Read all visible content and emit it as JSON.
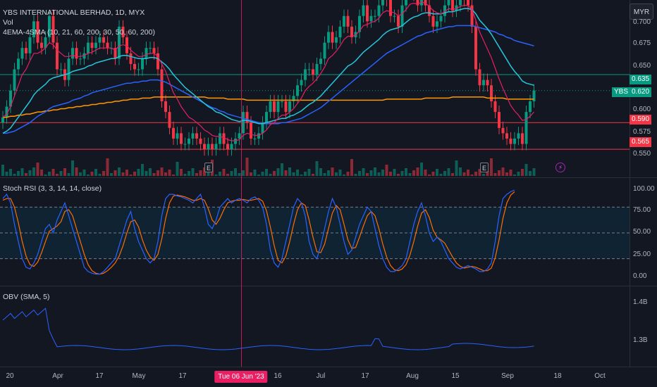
{
  "header": {
    "title": "YBS INTERNATIONAL BERHAD, 1D, MYX",
    "vol_label": "Vol",
    "ma_label": "4EMA-4SMA (10, 21, 60, 200, 30, 50, 60, 200)",
    "currency": "MYR"
  },
  "stoch_panel": {
    "label": "Stoch RSI (3, 3, 14, 14, close)"
  },
  "obv_panel": {
    "label": "OBV (SMA, 5)"
  },
  "price_axis": {
    "ticks": [
      "0.700",
      "0.675",
      "0.650",
      "0.600",
      "0.575",
      "0.550"
    ],
    "labels": [
      {
        "text": "0.635",
        "color": "#089981"
      },
      {
        "text": "YBS",
        "color": "#089981"
      },
      {
        "text": "0.620",
        "color": "#089981"
      },
      {
        "text": "0.590",
        "color": "#f23645"
      },
      {
        "text": "0.565",
        "color": "#f23645"
      }
    ]
  },
  "stoch_axis": {
    "ticks": [
      "100.00",
      "75.00",
      "50.00",
      "25.00",
      "0.00"
    ]
  },
  "obv_axis": {
    "ticks": [
      "1.4B",
      "1.3B"
    ]
  },
  "time_axis": {
    "ticks": [
      "20",
      "Apr",
      "17",
      "May",
      "17",
      "16",
      "Jul",
      "17",
      "Aug",
      "15",
      "Sep",
      "18",
      "Oct"
    ],
    "crosshair": "Tue 06 Jun '23"
  },
  "markers": {
    "earnings": "E",
    "dividend": "⚡"
  },
  "chart_data": {
    "type": "candlestick",
    "price_range": [
      0.54,
      0.705
    ],
    "levels": [
      {
        "value": 0.635,
        "color": "#089981"
      },
      {
        "value": 0.59,
        "color": "#f23645"
      },
      {
        "value": 0.565,
        "color": "#f23645"
      }
    ],
    "last_price": 0.62,
    "closes": [
      0.595,
      0.605,
      0.62,
      0.64,
      0.65,
      0.66,
      0.655,
      0.67,
      0.685,
      0.665,
      0.66,
      0.67,
      0.69,
      0.665,
      0.64,
      0.64,
      0.63,
      0.65,
      0.66,
      0.65,
      0.65,
      0.655,
      0.665,
      0.66,
      0.665,
      0.67,
      0.665,
      0.66,
      0.66,
      0.65,
      0.68,
      0.67,
      0.655,
      0.645,
      0.64,
      0.64,
      0.65,
      0.66,
      0.66,
      0.655,
      0.64,
      0.61,
      0.6,
      0.585,
      0.575,
      0.58,
      0.57,
      0.57,
      0.575,
      0.58,
      0.575,
      0.57,
      0.565,
      0.57,
      0.565,
      0.57,
      0.58,
      0.57,
      0.565,
      0.57,
      0.575,
      0.58,
      0.6,
      0.59,
      0.575,
      0.575,
      0.58,
      0.59,
      0.6,
      0.61,
      0.6,
      0.61,
      0.61,
      0.6,
      0.61,
      0.615,
      0.625,
      0.63,
      0.64,
      0.64,
      0.635,
      0.645,
      0.65,
      0.665,
      0.675,
      0.665,
      0.67,
      0.68,
      0.69,
      0.68,
      0.67,
      0.675,
      0.69,
      0.7,
      0.685,
      0.69,
      0.69,
      0.7,
      0.71,
      0.705,
      0.69,
      0.69,
      0.68,
      0.7,
      0.715,
      0.72,
      0.71,
      0.7,
      0.715,
      0.7,
      0.69,
      0.68,
      0.685,
      0.69,
      0.7,
      0.71,
      0.695,
      0.7,
      0.71,
      0.705,
      0.7,
      0.68,
      0.64,
      0.625,
      0.63,
      0.625,
      0.61,
      0.6,
      0.585,
      0.58,
      0.575,
      0.57,
      0.575,
      0.58,
      0.57,
      0.6,
      0.61,
      0.62
    ],
    "ema_fast": [
      0.595,
      0.598,
      0.605,
      0.615,
      0.625,
      0.635,
      0.64,
      0.648,
      0.655,
      0.655,
      0.657,
      0.66,
      0.665,
      0.663,
      0.658,
      0.655,
      0.652,
      0.652,
      0.653,
      0.652,
      0.652,
      0.653,
      0.655,
      0.656,
      0.658,
      0.66,
      0.66,
      0.66,
      0.66,
      0.658,
      0.662,
      0.663,
      0.662,
      0.658,
      0.655,
      0.652,
      0.652,
      0.654,
      0.655,
      0.655,
      0.652,
      0.645,
      0.638,
      0.628,
      0.618,
      0.612,
      0.605,
      0.6,
      0.595,
      0.593,
      0.59,
      0.587,
      0.583,
      0.581,
      0.578,
      0.577,
      0.577,
      0.576,
      0.574,
      0.573,
      0.573,
      0.574,
      0.578,
      0.58,
      0.579,
      0.578,
      0.578,
      0.58,
      0.583,
      0.588,
      0.59,
      0.594,
      0.597,
      0.597,
      0.6,
      0.603,
      0.608,
      0.613,
      0.62,
      0.624,
      0.627,
      0.631,
      0.636,
      0.642,
      0.65,
      0.653,
      0.657,
      0.662,
      0.668,
      0.671,
      0.671,
      0.672,
      0.676,
      0.681,
      0.682,
      0.684,
      0.685,
      0.688,
      0.693,
      0.695,
      0.694,
      0.693,
      0.69,
      0.692,
      0.696,
      0.701,
      0.702,
      0.701,
      0.703,
      0.702,
      0.699,
      0.695,
      0.693,
      0.692,
      0.694,
      0.697,
      0.696,
      0.697,
      0.699,
      0.7,
      0.7,
      0.696,
      0.686,
      0.675,
      0.667,
      0.659,
      0.651,
      0.641,
      0.631,
      0.622,
      0.614,
      0.606,
      0.601,
      0.597,
      0.592,
      0.593,
      0.596,
      0.6
    ],
    "ema_slow": [
      0.58,
      0.582,
      0.585,
      0.59,
      0.595,
      0.6,
      0.605,
      0.61,
      0.616,
      0.62,
      0.623,
      0.626,
      0.63,
      0.632,
      0.633,
      0.634,
      0.635,
      0.636,
      0.638,
      0.639,
      0.64,
      0.641,
      0.643,
      0.644,
      0.646,
      0.647,
      0.648,
      0.649,
      0.65,
      0.65,
      0.652,
      0.653,
      0.653,
      0.652,
      0.651,
      0.65,
      0.65,
      0.65,
      0.651,
      0.651,
      0.65,
      0.647,
      0.644,
      0.64,
      0.635,
      0.631,
      0.627,
      0.623,
      0.62,
      0.617,
      0.614,
      0.611,
      0.608,
      0.605,
      0.603,
      0.6,
      0.599,
      0.597,
      0.595,
      0.593,
      0.592,
      0.591,
      0.592,
      0.592,
      0.591,
      0.59,
      0.589,
      0.589,
      0.59,
      0.591,
      0.592,
      0.593,
      0.594,
      0.594,
      0.596,
      0.597,
      0.599,
      0.601,
      0.604,
      0.607,
      0.609,
      0.612,
      0.615,
      0.619,
      0.623,
      0.627,
      0.631,
      0.635,
      0.639,
      0.643,
      0.645,
      0.648,
      0.652,
      0.656,
      0.659,
      0.662,
      0.665,
      0.668,
      0.672,
      0.675,
      0.677,
      0.678,
      0.679,
      0.681,
      0.684,
      0.687,
      0.689,
      0.69,
      0.692,
      0.693,
      0.693,
      0.692,
      0.692,
      0.692,
      0.693,
      0.694,
      0.694,
      0.695,
      0.696,
      0.697,
      0.697,
      0.696,
      0.692,
      0.686,
      0.682,
      0.678,
      0.673,
      0.667,
      0.661,
      0.655,
      0.649,
      0.643,
      0.638,
      0.634,
      0.629,
      0.627,
      0.626,
      0.625
    ],
    "sma_mid": [
      0.58,
      0.58,
      0.581,
      0.582,
      0.584,
      0.586,
      0.588,
      0.59,
      0.593,
      0.596,
      0.598,
      0.6,
      0.603,
      0.605,
      0.606,
      0.607,
      0.608,
      0.609,
      0.611,
      0.612,
      0.613,
      0.615,
      0.616,
      0.618,
      0.619,
      0.62,
      0.621,
      0.622,
      0.623,
      0.624,
      0.625,
      0.626,
      0.627,
      0.627,
      0.628,
      0.628,
      0.629,
      0.629,
      0.63,
      0.63,
      0.63,
      0.629,
      0.628,
      0.626,
      0.624,
      0.622,
      0.62,
      0.618,
      0.616,
      0.614,
      0.612,
      0.61,
      0.608,
      0.606,
      0.604,
      0.603,
      0.601,
      0.6,
      0.598,
      0.597,
      0.596,
      0.595,
      0.594,
      0.593,
      0.592,
      0.591,
      0.59,
      0.589,
      0.589,
      0.589,
      0.589,
      0.589,
      0.59,
      0.59,
      0.591,
      0.592,
      0.593,
      0.594,
      0.596,
      0.598,
      0.6,
      0.602,
      0.604,
      0.607,
      0.61,
      0.613,
      0.616,
      0.619,
      0.622,
      0.625,
      0.628,
      0.631,
      0.634,
      0.637,
      0.64,
      0.643,
      0.646,
      0.649,
      0.652,
      0.655,
      0.657,
      0.659,
      0.661,
      0.663,
      0.665,
      0.667,
      0.669,
      0.671,
      0.672,
      0.674,
      0.675,
      0.676,
      0.677,
      0.678,
      0.679,
      0.68,
      0.68,
      0.681,
      0.681,
      0.681,
      0.681,
      0.681,
      0.68,
      0.679,
      0.678,
      0.677,
      0.676,
      0.675,
      0.673,
      0.672,
      0.67,
      0.669,
      0.667,
      0.666,
      0.665,
      0.664,
      0.663,
      0.662
    ],
    "sma_200": [
      0.595,
      0.595,
      0.596,
      0.596,
      0.597,
      0.597,
      0.598,
      0.598,
      0.599,
      0.6,
      0.6,
      0.601,
      0.601,
      0.602,
      0.602,
      0.603,
      0.603,
      0.604,
      0.604,
      0.605,
      0.605,
      0.606,
      0.606,
      0.607,
      0.607,
      0.608,
      0.608,
      0.609,
      0.609,
      0.61,
      0.61,
      0.611,
      0.611,
      0.612,
      0.612,
      0.612,
      0.613,
      0.613,
      0.613,
      0.614,
      0.614,
      0.614,
      0.614,
      0.614,
      0.614,
      0.614,
      0.614,
      0.614,
      0.614,
      0.614,
      0.614,
      0.614,
      0.614,
      0.613,
      0.613,
      0.613,
      0.613,
      0.613,
      0.612,
      0.612,
      0.612,
      0.612,
      0.612,
      0.611,
      0.611,
      0.611,
      0.611,
      0.611,
      0.611,
      0.611,
      0.611,
      0.611,
      0.611,
      0.611,
      0.611,
      0.611,
      0.611,
      0.611,
      0.611,
      0.611,
      0.611,
      0.611,
      0.611,
      0.611,
      0.611,
      0.611,
      0.611,
      0.611,
      0.611,
      0.611,
      0.611,
      0.611,
      0.611,
      0.611,
      0.611,
      0.611,
      0.611,
      0.611,
      0.611,
      0.612,
      0.612,
      0.612,
      0.612,
      0.612,
      0.612,
      0.612,
      0.612,
      0.612,
      0.612,
      0.613,
      0.613,
      0.613,
      0.613,
      0.613,
      0.613,
      0.613,
      0.614,
      0.614,
      0.614,
      0.614,
      0.614,
      0.614,
      0.614,
      0.614,
      0.614,
      0.613,
      0.613,
      0.613,
      0.613,
      0.613,
      0.612,
      0.612,
      0.612,
      0.612,
      0.612,
      0.612,
      0.612,
      0.612
    ],
    "stoch_k": [
      90,
      95,
      85,
      60,
      40,
      20,
      10,
      8,
      15,
      25,
      40,
      55,
      60,
      50,
      65,
      75,
      85,
      70,
      55,
      40,
      25,
      10,
      5,
      3,
      2,
      2,
      5,
      10,
      15,
      20,
      35,
      50,
      65,
      75,
      55,
      40,
      30,
      20,
      15,
      20,
      40,
      70,
      90,
      95,
      95,
      93,
      92,
      90,
      88,
      85,
      90,
      95,
      80,
      60,
      55,
      65,
      80,
      85,
      90,
      85,
      88,
      90,
      88,
      85,
      90,
      92,
      88,
      80,
      60,
      30,
      15,
      10,
      20,
      40,
      60,
      80,
      90,
      85,
      70,
      40,
      25,
      20,
      35,
      55,
      75,
      90,
      80,
      60,
      40,
      25,
      30,
      45,
      60,
      70,
      80,
      75,
      55,
      35,
      20,
      10,
      5,
      5,
      8,
      12,
      20,
      40,
      60,
      75,
      85,
      70,
      50,
      40,
      45,
      40,
      30,
      20,
      15,
      10,
      8,
      10,
      12,
      10,
      8,
      5,
      5,
      8,
      15,
      40,
      70,
      90,
      95,
      98,
      100
    ],
    "stoch_d": [
      88,
      90,
      90,
      80,
      62,
      40,
      23,
      13,
      11,
      16,
      27,
      40,
      52,
      55,
      58,
      63,
      75,
      77,
      70,
      55,
      40,
      25,
      13,
      6,
      3,
      2,
      3,
      6,
      10,
      15,
      23,
      35,
      50,
      63,
      65,
      57,
      42,
      30,
      22,
      18,
      25,
      43,
      67,
      85,
      93,
      94,
      93,
      92,
      90,
      88,
      88,
      90,
      88,
      78,
      65,
      60,
      67,
      77,
      85,
      87,
      88,
      88,
      89,
      88,
      88,
      89,
      90,
      87,
      76,
      57,
      35,
      18,
      15,
      23,
      40,
      60,
      77,
      85,
      82,
      65,
      45,
      28,
      27,
      37,
      55,
      73,
      82,
      77,
      60,
      42,
      32,
      33,
      45,
      58,
      70,
      75,
      70,
      55,
      37,
      22,
      12,
      7,
      6,
      8,
      13,
      24,
      40,
      58,
      73,
      77,
      68,
      53,
      45,
      42,
      38,
      30,
      22,
      15,
      11,
      9,
      10,
      11,
      10,
      8,
      6,
      6,
      9,
      21,
      42,
      67,
      85,
      94,
      98
    ]
  }
}
